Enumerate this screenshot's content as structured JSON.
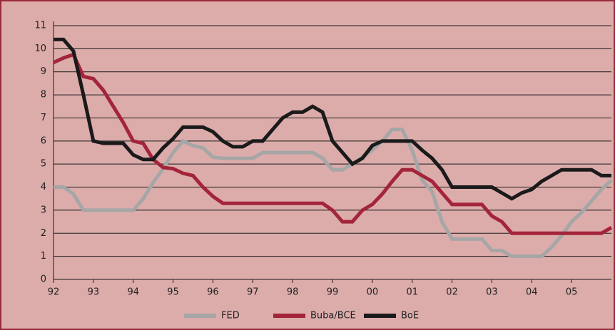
{
  "chart_data": {
    "type": "line",
    "x": [
      1992,
      1992.25,
      1992.5,
      1992.75,
      1993,
      1993.25,
      1993.5,
      1993.75,
      1994,
      1994.25,
      1994.5,
      1994.75,
      1995,
      1995.25,
      1995.5,
      1995.75,
      1996,
      1996.25,
      1996.5,
      1996.75,
      1997,
      1997.25,
      1997.5,
      1997.75,
      1998,
      1998.25,
      1998.5,
      1998.75,
      1999,
      1999.25,
      1999.5,
      1999.75,
      2000,
      2000.25,
      2000.5,
      2000.75,
      2001,
      2001.25,
      2001.5,
      2001.75,
      2002,
      2002.25,
      2002.5,
      2002.75,
      2003,
      2003.25,
      2003.5,
      2003.75,
      2004,
      2004.25,
      2004.5,
      2004.75,
      2005,
      2005.25,
      2005.5,
      2005.75,
      2006
    ],
    "series": [
      {
        "name": "FED",
        "color": "#a6a6a6",
        "values": [
          4,
          4,
          3.7,
          3,
          3,
          3,
          3,
          3,
          3,
          3.5,
          4.2,
          4.8,
          5.5,
          6,
          5.8,
          5.7,
          5.3,
          5.25,
          5.25,
          5.25,
          5.25,
          5.5,
          5.5,
          5.5,
          5.5,
          5.5,
          5.5,
          5.25,
          4.75,
          4.75,
          5,
          5.3,
          5.6,
          6,
          6.5,
          6.5,
          5.6,
          4.3,
          3.8,
          2.5,
          1.75,
          1.75,
          1.75,
          1.75,
          1.25,
          1.25,
          1,
          1,
          1,
          1,
          1.4,
          1.9,
          2.5,
          2.9,
          3.4,
          3.9,
          4.3
        ]
      },
      {
        "name": "Buba/BCE",
        "color": "#a3243b",
        "values": [
          9.4,
          9.6,
          9.75,
          8.8,
          8.7,
          8.2,
          7.5,
          6.8,
          6,
          5.9,
          5.2,
          4.85,
          4.8,
          4.6,
          4.5,
          4,
          3.6,
          3.3,
          3.3,
          3.3,
          3.3,
          3.3,
          3.3,
          3.3,
          3.3,
          3.3,
          3.3,
          3.3,
          3,
          2.5,
          2.5,
          3,
          3.25,
          3.7,
          4.25,
          4.75,
          4.75,
          4.5,
          4.25,
          3.75,
          3.25,
          3.25,
          3.25,
          3.25,
          2.75,
          2.5,
          2,
          2,
          2,
          2,
          2,
          2,
          2,
          2,
          2,
          2,
          2.25
        ]
      },
      {
        "name": "BoE",
        "color": "#1a1a1a",
        "values": [
          10.4,
          10.4,
          9.9,
          8,
          6,
          5.9,
          5.9,
          5.9,
          5.4,
          5.2,
          5.2,
          5.7,
          6.1,
          6.6,
          6.6,
          6.6,
          6.4,
          6,
          5.75,
          5.75,
          6,
          6,
          6.5,
          7,
          7.25,
          7.25,
          7.5,
          7.25,
          6,
          5.5,
          5,
          5.25,
          5.8,
          6,
          6,
          6,
          6,
          5.6,
          5.25,
          4.75,
          4,
          4,
          4,
          4,
          4,
          3.75,
          3.5,
          3.75,
          3.9,
          4.25,
          4.5,
          4.75,
          4.75,
          4.75,
          4.75,
          4.5,
          4.5
        ]
      }
    ],
    "xlim": [
      1992,
      2006
    ],
    "xticks": [
      {
        "value": 1992,
        "label": "92"
      },
      {
        "value": 1993,
        "label": "93"
      },
      {
        "value": 1994,
        "label": "94"
      },
      {
        "value": 1995,
        "label": "95"
      },
      {
        "value": 1996,
        "label": "96"
      },
      {
        "value": 1997,
        "label": "97"
      },
      {
        "value": 1998,
        "label": "98"
      },
      {
        "value": 1999,
        "label": "99"
      },
      {
        "value": 2000,
        "label": "00"
      },
      {
        "value": 2001,
        "label": "01"
      },
      {
        "value": 2002,
        "label": "02"
      },
      {
        "value": 2003,
        "label": "03"
      },
      {
        "value": 2004,
        "label": "04"
      },
      {
        "value": 2005,
        "label": "05"
      }
    ],
    "ylim": [
      0,
      11
    ],
    "yticks": [
      0,
      1,
      2,
      3,
      4,
      5,
      6,
      7,
      8,
      9,
      10,
      11
    ],
    "grid": true,
    "legend": "bottom"
  }
}
